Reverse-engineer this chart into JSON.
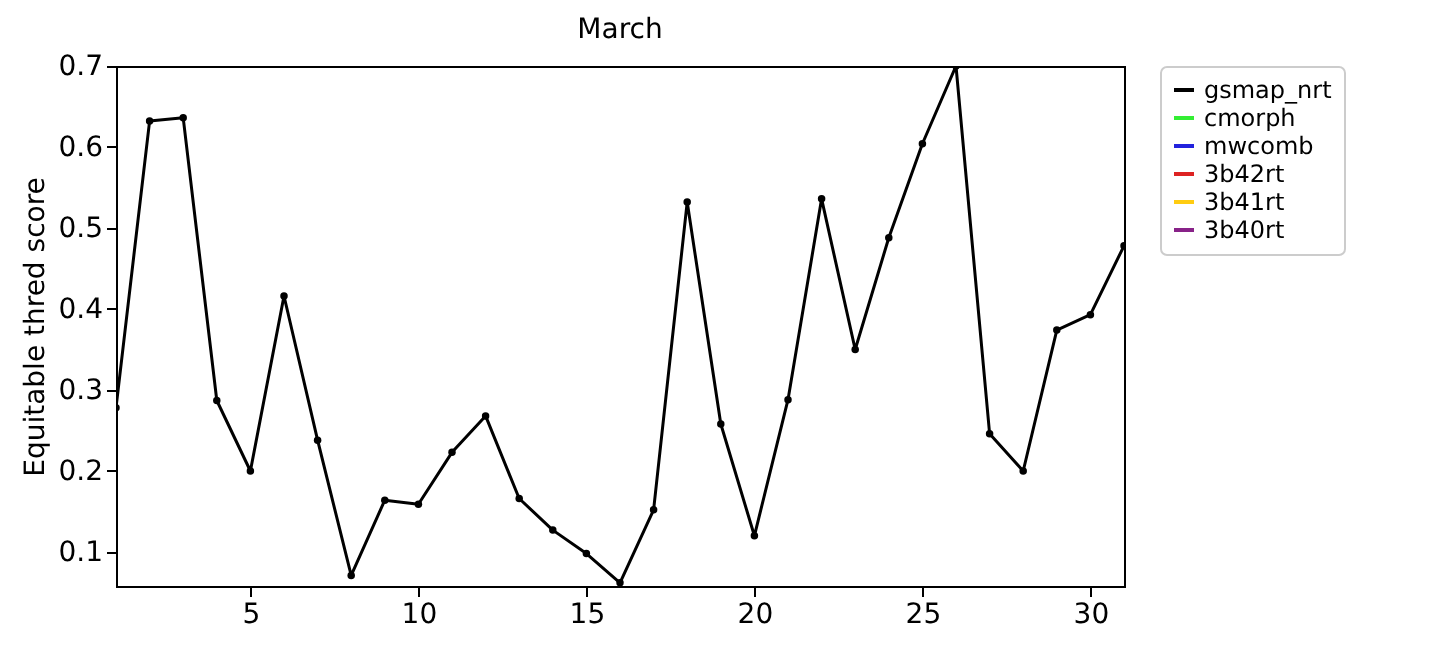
{
  "chart_data": {
    "type": "line",
    "title": "March",
    "ylabel": "Equitable thred score",
    "x": [
      1,
      2,
      3,
      4,
      5,
      6,
      7,
      8,
      9,
      10,
      11,
      12,
      13,
      14,
      15,
      16,
      17,
      18,
      19,
      20,
      21,
      22,
      23,
      24,
      25,
      26,
      27,
      28,
      29,
      30,
      31
    ],
    "series": [
      {
        "name": "gsmap_nrt",
        "color": "#000000",
        "values": [
          0.278,
          0.632,
          0.636,
          0.287,
          0.2,
          0.416,
          0.238,
          0.071,
          0.164,
          0.159,
          0.223,
          0.268,
          0.166,
          0.127,
          0.098,
          0.062,
          0.152,
          0.532,
          0.258,
          0.12,
          0.288,
          0.536,
          0.35,
          0.488,
          0.604,
          0.7,
          0.246,
          0.2,
          0.374,
          0.393,
          0.478
        ]
      },
      {
        "name": "cmorph",
        "color": "#33ee33",
        "values": [
          null,
          null,
          null,
          null,
          null,
          null,
          null,
          null,
          null,
          null,
          null,
          null,
          null,
          null,
          null,
          null,
          null,
          null,
          null,
          null,
          null,
          null,
          null,
          null,
          null,
          null,
          null,
          null,
          null,
          null,
          null
        ]
      },
      {
        "name": "mwcomb",
        "color": "#2222dd",
        "values": [
          null,
          null,
          null,
          null,
          null,
          null,
          null,
          null,
          null,
          null,
          null,
          null,
          null,
          null,
          null,
          null,
          null,
          null,
          null,
          null,
          null,
          null,
          null,
          null,
          null,
          null,
          null,
          null,
          null,
          null,
          null
        ]
      },
      {
        "name": "3b42rt",
        "color": "#dd2222",
        "values": [
          null,
          null,
          null,
          null,
          null,
          null,
          null,
          null,
          null,
          null,
          null,
          null,
          null,
          null,
          null,
          null,
          null,
          null,
          null,
          null,
          null,
          null,
          null,
          null,
          null,
          null,
          null,
          null,
          null,
          null,
          null
        ]
      },
      {
        "name": "3b41rt",
        "color": "#ffcc11",
        "values": [
          null,
          null,
          null,
          null,
          null,
          null,
          null,
          null,
          null,
          null,
          null,
          null,
          null,
          null,
          null,
          null,
          null,
          null,
          null,
          null,
          null,
          null,
          null,
          null,
          null,
          null,
          null,
          null,
          null,
          null,
          null
        ]
      },
      {
        "name": "3b40rt",
        "color": "#882288",
        "values": [
          null,
          null,
          null,
          null,
          null,
          null,
          null,
          null,
          null,
          null,
          null,
          null,
          null,
          null,
          null,
          null,
          null,
          null,
          null,
          null,
          null,
          null,
          null,
          null,
          null,
          null,
          null,
          null,
          null,
          null,
          null
        ]
      }
    ],
    "xlim": [
      1,
      31
    ],
    "xticks": [
      5,
      10,
      15,
      20,
      25,
      30
    ],
    "ylim": [
      0.058,
      0.7
    ],
    "yticks": [
      0.1,
      0.2,
      0.3,
      0.4,
      0.5,
      0.6,
      0.7
    ],
    "grid": false,
    "legend": "top right",
    "marker": "circle",
    "line_style": "solid"
  }
}
